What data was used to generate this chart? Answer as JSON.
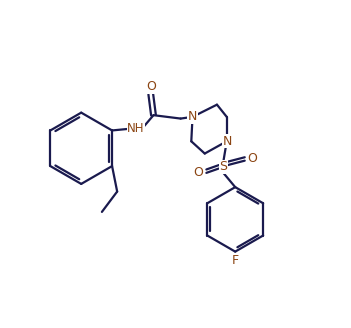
{
  "background_color": "#ffffff",
  "bond_color": "#1a1a4e",
  "heteroatom_color": "#8B4513",
  "line_width": 1.6,
  "figsize": [
    3.51,
    3.28
  ],
  "dpi": 100,
  "xlim": [
    0,
    10
  ],
  "ylim": [
    0,
    9.5
  ]
}
